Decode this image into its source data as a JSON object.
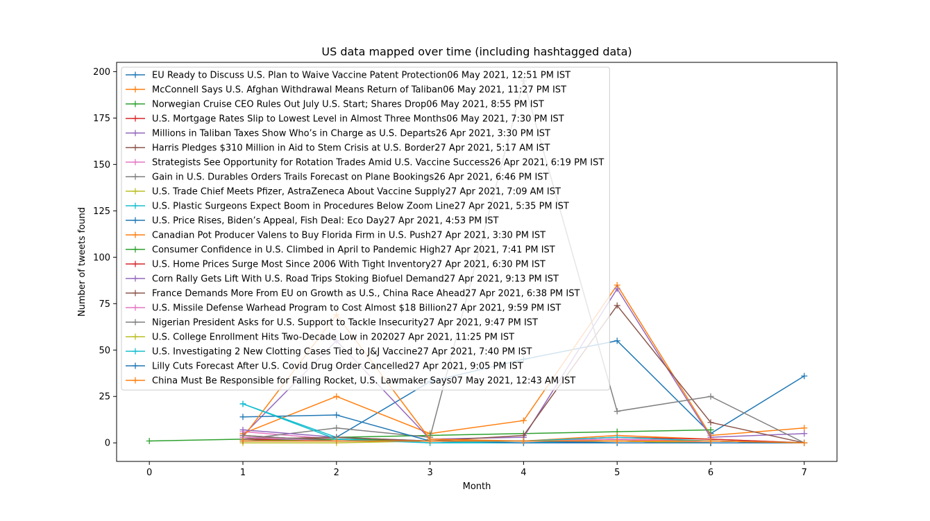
{
  "chart_data": {
    "type": "line",
    "title": "US data mapped over time (including hashtagged data)",
    "xlabel": "Month",
    "ylabel": "Number of tweets found",
    "xlim": [
      -0.35,
      7.35
    ],
    "ylim": [
      -10,
      205
    ],
    "xticks": [
      0,
      1,
      2,
      3,
      4,
      5,
      6,
      7
    ],
    "yticks": [
      0,
      25,
      50,
      75,
      100,
      125,
      150,
      175,
      200
    ],
    "grid": false,
    "legend_position": "upper-left",
    "marker": "+",
    "series": [
      {
        "name": "EU Ready to Discuss U.S. Plan to Waive Vaccine Patent Protection06 May 2021, 12:51 PM IST",
        "color": "#1f77b4",
        "x": [
          1,
          2,
          3,
          4,
          5,
          6,
          7
        ],
        "y": [
          1,
          3,
          33,
          45,
          55,
          5,
          36
        ]
      },
      {
        "name": "McConnell Says U.S. Afghan Withdrawal Means Return of Taliban06 May 2021, 11:27 PM IST",
        "color": "#ff7f0e",
        "x": [
          1,
          2,
          3,
          4,
          5,
          6,
          7
        ],
        "y": [
          5,
          25,
          5,
          12,
          85,
          4,
          8
        ]
      },
      {
        "name": "Norwegian Cruise CEO Rules Out July U.S. Start; Shares Drop06 May 2021, 8:55 PM IST",
        "color": "#2ca02c",
        "x": [
          0,
          1,
          2,
          3,
          4,
          5,
          6
        ],
        "y": [
          1,
          2,
          3,
          4,
          5,
          6,
          7
        ]
      },
      {
        "name": "U.S. Mortgage Rates Slip to Lowest Level in Almost Three Months06 May 2021, 7:30 PM IST",
        "color": "#d62728",
        "x": [
          1,
          2,
          3,
          4,
          5,
          6,
          7
        ],
        "y": [
          2,
          1,
          1,
          1,
          2,
          1,
          0
        ]
      },
      {
        "name": "Millions in Taliban Taxes Show Who’s in Charge as U.S. Departs26 Apr 2021, 3:30 PM IST",
        "color": "#9467bd",
        "x": [
          1,
          2,
          3,
          4,
          5,
          6,
          7
        ],
        "y": [
          4,
          55,
          2,
          3,
          83,
          3,
          5
        ]
      },
      {
        "name": "Harris Pledges $310 Million in Aid to Stem Crisis at U.S. Border27 Apr 2021, 5:17 AM IST",
        "color": "#8c564b",
        "x": [
          1,
          2,
          3,
          4,
          5,
          6,
          7
        ],
        "y": [
          3,
          2,
          1,
          4,
          74,
          11,
          0
        ]
      },
      {
        "name": "Strategists See Opportunity for Rotation Trades Amid U.S. Vaccine Success26 Apr 2021, 6:19 PM IST",
        "color": "#e377c2",
        "x": [
          1,
          2,
          3,
          4,
          5,
          6,
          7
        ],
        "y": [
          6,
          2,
          1,
          1,
          2,
          1,
          0
        ]
      },
      {
        "name": "Gain in U.S. Durables Orders Trails Forecast on Plane Bookings26 Apr 2021, 6:46 PM IST",
        "color": "#7f7f7f",
        "x": [
          1,
          2,
          3,
          4,
          5,
          6,
          7
        ],
        "y": [
          2,
          8,
          3,
          195,
          17,
          25,
          0
        ]
      },
      {
        "name": "U.S. Trade Chief Meets Pfizer, AstraZeneca About Vaccine Supply27 Apr 2021, 7:09 AM IST",
        "color": "#bcbd22",
        "x": [
          1,
          2,
          3,
          4,
          5,
          6,
          7
        ],
        "y": [
          0,
          0,
          1,
          1,
          1,
          0,
          0
        ]
      },
      {
        "name": "U.S. Plastic Surgeons Expect Boom in Procedures Below Zoom Line27 Apr 2021, 5:35 PM IST",
        "color": "#17becf",
        "x": [
          1,
          2,
          3,
          4,
          5,
          6,
          7
        ],
        "y": [
          21,
          3,
          0,
          0,
          1,
          0,
          0
        ]
      },
      {
        "name": "U.S. Price Rises, Biden’s Appeal, Fish Deal: Eco Day27 Apr 2021, 4:53 PM IST",
        "color": "#1f77b4",
        "x": [
          1,
          2,
          3,
          4,
          5,
          6,
          7
        ],
        "y": [
          14,
          15,
          1,
          0,
          0,
          0,
          0
        ]
      },
      {
        "name": "Canadian Pot Producer Valens to Buy Florida Firm in U.S. Push27 Apr 2021, 3:30 PM IST",
        "color": "#ff7f0e",
        "x": [
          1,
          2,
          3,
          4,
          5,
          6,
          7
        ],
        "y": [
          3,
          69,
          2,
          1,
          4,
          2,
          0
        ]
      },
      {
        "name": "Consumer Confidence in U.S. Climbed in April to Pandemic High27 Apr 2021, 7:41 PM IST",
        "color": "#2ca02c",
        "x": [
          1,
          2,
          3,
          4,
          5,
          6,
          7
        ],
        "y": [
          1,
          2,
          1,
          1,
          1,
          1,
          0
        ]
      },
      {
        "name": "U.S. Home Prices Surge Most Since 2006 With Tight Inventory27 Apr 2021, 6:30 PM IST",
        "color": "#d62728",
        "x": [
          1,
          2,
          3,
          4,
          5,
          6,
          7
        ],
        "y": [
          4,
          1,
          1,
          1,
          3,
          2,
          0
        ]
      },
      {
        "name": "Corn Rally Gets Lift With U.S. Road Trips Stoking Biofuel Demand27 Apr 2021, 9:13 PM IST",
        "color": "#9467bd",
        "x": [
          1,
          2,
          3,
          4,
          5,
          6,
          7
        ],
        "y": [
          7,
          3,
          1,
          1,
          1,
          1,
          0
        ]
      },
      {
        "name": "France Demands More From EU on Growth as U.S., China Race Ahead27 Apr 2021, 6:38 PM IST",
        "color": "#8c564b",
        "x": [
          1,
          2,
          3,
          4,
          5,
          6,
          7
        ],
        "y": [
          2,
          3,
          1,
          1,
          1,
          0,
          0
        ]
      },
      {
        "name": "U.S. Missile Defense Warhead Program to Cost Almost $18 Billion27 Apr 2021, 9:59 PM IST",
        "color": "#e377c2",
        "x": [
          1,
          2,
          3,
          4,
          5,
          6,
          7
        ],
        "y": [
          3,
          1,
          1,
          1,
          2,
          0,
          0
        ]
      },
      {
        "name": "Nigerian President Asks for U.S. Support to Tackle Insecurity27 Apr 2021, 9:47 PM IST",
        "color": "#7f7f7f",
        "x": [
          1,
          2,
          3,
          4,
          5,
          6,
          7
        ],
        "y": [
          4,
          1,
          1,
          1,
          1,
          0,
          0
        ]
      },
      {
        "name": "U.S. College Enrollment Hits Two-Decade Low in 202027 Apr 2021, 11:25 PM IST",
        "color": "#bcbd22",
        "x": [
          1,
          2,
          3,
          4,
          5,
          6,
          7
        ],
        "y": [
          1,
          1,
          1,
          1,
          1,
          0,
          0
        ]
      },
      {
        "name": "U.S. Investigating 2 New Clotting Cases Tied to J&J Vaccine27 Apr 2021, 7:40 PM IST",
        "color": "#17becf",
        "x": [
          1,
          2,
          3,
          4,
          5,
          6,
          7
        ],
        "y": [
          21,
          2,
          0,
          1,
          3,
          1,
          0
        ]
      },
      {
        "name": "Lilly Cuts Forecast After U.S. Covid Drug Order Cancelled27 Apr 2021, 9:05 PM IST",
        "color": "#1f77b4",
        "x": [
          1,
          2,
          3,
          4,
          5,
          6,
          7
        ],
        "y": [
          1,
          1,
          1,
          1,
          0,
          0,
          0
        ]
      },
      {
        "name": "China Must Be Responsible for Falling Rocket, U.S. Lawmaker Says07 May 2021, 12:43 AM IST",
        "color": "#ff7f0e",
        "x": [
          1,
          2,
          3,
          4,
          5,
          6,
          7
        ],
        "y": [
          1,
          1,
          1,
          1,
          1,
          1,
          0
        ]
      }
    ]
  }
}
